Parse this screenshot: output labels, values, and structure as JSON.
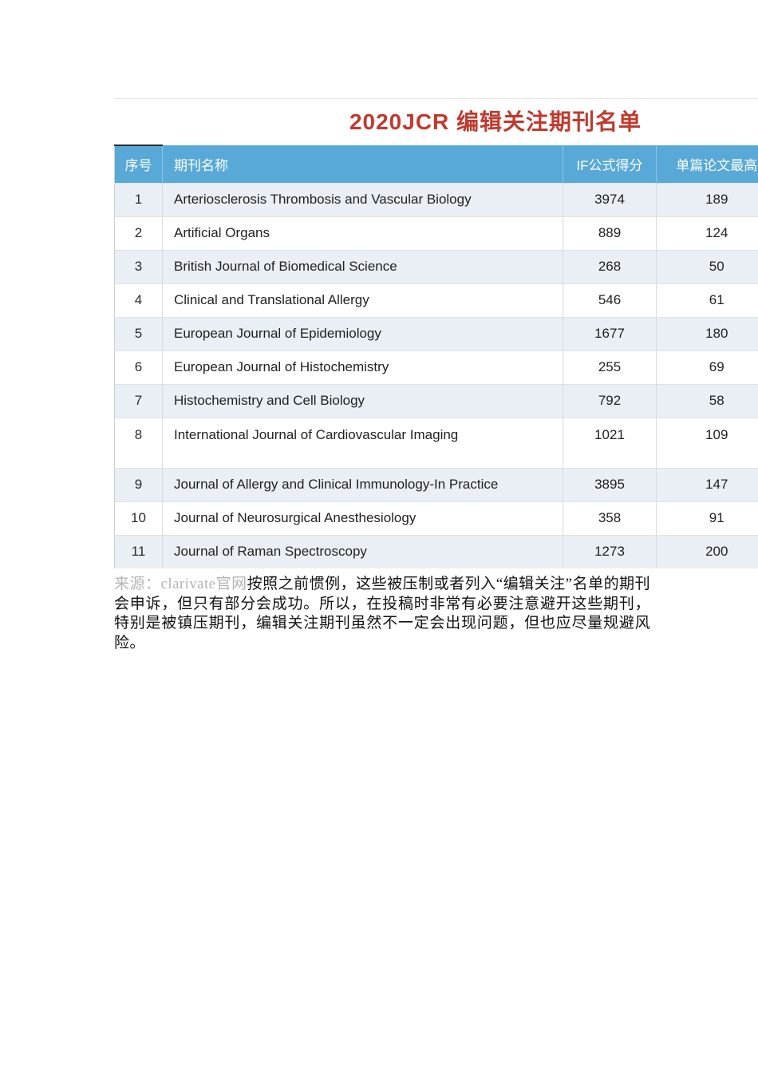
{
  "page": {
    "title": "2020JCR 编辑关注期刊名单"
  },
  "table": {
    "headers": [
      "序号",
      "期刊名称",
      "IF公式得分",
      "单篇论文最高"
    ],
    "rows": [
      {
        "no": "1",
        "journal": "Arteriosclerosis Thrombosis and Vascular Biology",
        "if_score": "3974",
        "max_cite": "189"
      },
      {
        "no": "2",
        "journal": "Artificial Organs",
        "if_score": "889",
        "max_cite": "124"
      },
      {
        "no": "3",
        "journal": "British Journal of Biomedical Science",
        "if_score": "268",
        "max_cite": "50"
      },
      {
        "no": "4",
        "journal": "Clinical and Translational Allergy",
        "if_score": "546",
        "max_cite": "61"
      },
      {
        "no": "5",
        "journal": "European Journal of Epidemiology",
        "if_score": "1677",
        "max_cite": "180"
      },
      {
        "no": "6",
        "journal": "European Journal of Histochemistry",
        "if_score": "255",
        "max_cite": "69"
      },
      {
        "no": "7",
        "journal": "Histochemistry and Cell Biology",
        "if_score": "792",
        "max_cite": "58"
      },
      {
        "no": "8",
        "journal": "International Journal of Cardiovascular Imaging",
        "if_score": "1021",
        "max_cite": "109"
      },
      {
        "no": "9",
        "journal": "Journal of Allergy and Clinical Immunology-In Practice",
        "if_score": "3895",
        "max_cite": "147"
      },
      {
        "no": "10",
        "journal": "Journal of Neurosurgical Anesthesiology",
        "if_score": "358",
        "max_cite": "91"
      },
      {
        "no": "11",
        "journal": "Journal of Raman Spectroscopy",
        "if_score": "1273",
        "max_cite": "200"
      }
    ]
  },
  "footer": {
    "source_label": "来源：clarivate官网",
    "note": "按照之前惯例，这些被压制或者列入“编辑关注”名单的期刊会申诉，但只有部分会成功。所以，在投稿时非常有必要注意避开这些期刊，特别是被镇压期刊，编辑关注期刊虽然不一定会出现问题，但也应尽量规避风险。"
  },
  "colors": {
    "header_bg": "#58a9d8",
    "row_alt_bg": "#e9eff4",
    "title_red": "#c03a2e",
    "source_gray": "#b4b4b4"
  }
}
